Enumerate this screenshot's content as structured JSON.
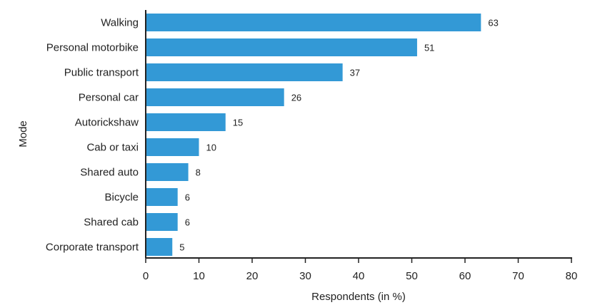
{
  "chart_data": {
    "type": "bar",
    "orientation": "horizontal",
    "title": "",
    "xlabel": "Respondents (in %)",
    "ylabel": "Mode",
    "xlim": [
      0,
      80
    ],
    "xticks": [
      0,
      10,
      20,
      30,
      40,
      50,
      60,
      70,
      80
    ],
    "grid": false,
    "bar_color": "#3399d6",
    "categories": [
      "Walking",
      "Personal motorbike",
      "Public transport",
      "Personal car",
      "Autorickshaw",
      "Cab or taxi",
      "Shared auto",
      "Bicycle",
      "Shared cab",
      "Corporate transport"
    ],
    "values": [
      63,
      51,
      37,
      26,
      15,
      10,
      8,
      6,
      6,
      5
    ]
  }
}
